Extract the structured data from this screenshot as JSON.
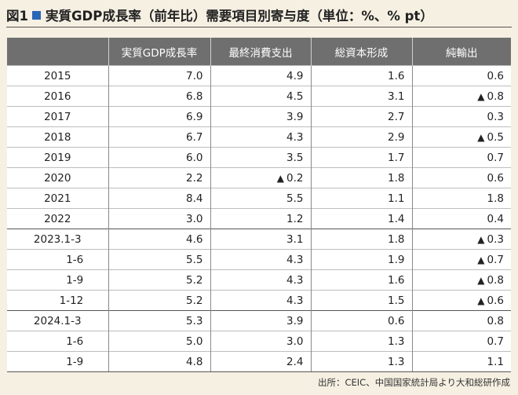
{
  "title": {
    "prefix": "図1",
    "text": "実質GDP成長率（前年比）需要項目別寄与度（単位：%、% pt）"
  },
  "table": {
    "headers": [
      "",
      "実質GDP成長率",
      "最終消費支出",
      "総資本形成",
      "純輸出"
    ],
    "rows": [
      {
        "label": "2015",
        "indent": false,
        "group_start": false,
        "cells": [
          "7.0",
          "4.9",
          "1.6",
          "0.6"
        ],
        "neg": [
          false,
          false,
          false,
          false
        ]
      },
      {
        "label": "2016",
        "indent": false,
        "group_start": false,
        "cells": [
          "6.8",
          "4.5",
          "3.1",
          "0.8"
        ],
        "neg": [
          false,
          false,
          false,
          true
        ]
      },
      {
        "label": "2017",
        "indent": false,
        "group_start": false,
        "cells": [
          "6.9",
          "3.9",
          "2.7",
          "0.3"
        ],
        "neg": [
          false,
          false,
          false,
          false
        ]
      },
      {
        "label": "2018",
        "indent": false,
        "group_start": false,
        "cells": [
          "6.7",
          "4.3",
          "2.9",
          "0.5"
        ],
        "neg": [
          false,
          false,
          false,
          true
        ]
      },
      {
        "label": "2019",
        "indent": false,
        "group_start": false,
        "cells": [
          "6.0",
          "3.5",
          "1.7",
          "0.7"
        ],
        "neg": [
          false,
          false,
          false,
          false
        ]
      },
      {
        "label": "2020",
        "indent": false,
        "group_start": false,
        "cells": [
          "2.2",
          "0.2",
          "1.8",
          "0.6"
        ],
        "neg": [
          false,
          true,
          false,
          false
        ]
      },
      {
        "label": "2021",
        "indent": false,
        "group_start": false,
        "cells": [
          "8.4",
          "5.5",
          "1.1",
          "1.8"
        ],
        "neg": [
          false,
          false,
          false,
          false
        ]
      },
      {
        "label": "2022",
        "indent": false,
        "group_start": false,
        "cells": [
          "3.0",
          "1.2",
          "1.4",
          "0.4"
        ],
        "neg": [
          false,
          false,
          false,
          false
        ]
      },
      {
        "label": "2023.1-3",
        "indent": false,
        "group_start": true,
        "cells": [
          "4.6",
          "3.1",
          "1.8",
          "0.3"
        ],
        "neg": [
          false,
          false,
          false,
          true
        ]
      },
      {
        "label": "1-6",
        "indent": true,
        "group_start": false,
        "cells": [
          "5.5",
          "4.3",
          "1.9",
          "0.7"
        ],
        "neg": [
          false,
          false,
          false,
          true
        ]
      },
      {
        "label": "1-9",
        "indent": true,
        "group_start": false,
        "cells": [
          "5.2",
          "4.3",
          "1.6",
          "0.8"
        ],
        "neg": [
          false,
          false,
          false,
          true
        ]
      },
      {
        "label": "1-12",
        "indent": true,
        "group_start": false,
        "cells": [
          "5.2",
          "4.3",
          "1.5",
          "0.6"
        ],
        "neg": [
          false,
          false,
          false,
          true
        ]
      },
      {
        "label": "2024.1-3",
        "indent": false,
        "group_start": true,
        "cells": [
          "5.3",
          "3.9",
          "0.6",
          "0.8"
        ],
        "neg": [
          false,
          false,
          false,
          false
        ]
      },
      {
        "label": "1-6",
        "indent": true,
        "group_start": false,
        "cells": [
          "5.0",
          "3.0",
          "1.3",
          "0.7"
        ],
        "neg": [
          false,
          false,
          false,
          false
        ]
      },
      {
        "label": "1-9",
        "indent": true,
        "group_start": false,
        "cells": [
          "4.8",
          "2.4",
          "1.3",
          "1.1"
        ],
        "neg": [
          false,
          false,
          false,
          false
        ]
      }
    ]
  },
  "negative_marker": "▲",
  "source": "出所：CEIC、中国国家統計局より大和総研作成"
}
